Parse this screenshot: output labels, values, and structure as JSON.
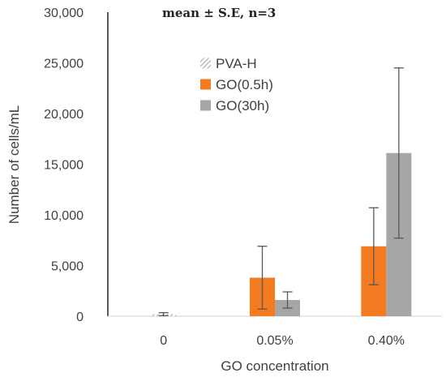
{
  "chart_data": {
    "type": "bar",
    "title": "",
    "annotation": "mean ± S.E, n=3",
    "xlabel": "GO concentration",
    "ylabel": "Number of cells/mL",
    "categories": [
      "0",
      "0.05%",
      "0.40%"
    ],
    "ylim": [
      0,
      30000
    ],
    "yticks": [
      0,
      5000,
      10000,
      15000,
      20000,
      25000,
      30000
    ],
    "ytick_labels": [
      "0",
      "5,000",
      "10,000",
      "15,000",
      "20,000",
      "25,000",
      "30,000"
    ],
    "grid": false,
    "legend_position": "top-center",
    "series": [
      {
        "name": "PVA-H",
        "color": "#a6a6a6",
        "pattern": "hatched",
        "values": [
          200,
          null,
          null
        ],
        "errors": [
          150,
          null,
          null
        ]
      },
      {
        "name": "GO(0.5h)",
        "color": "#f47b20",
        "values": [
          null,
          3800,
          6900
        ],
        "errors": [
          null,
          3100,
          3800
        ]
      },
      {
        "name": "GO(30h)",
        "color": "#a6a6a6",
        "values": [
          null,
          1600,
          16100
        ],
        "errors": [
          null,
          800,
          8400
        ]
      }
    ]
  }
}
